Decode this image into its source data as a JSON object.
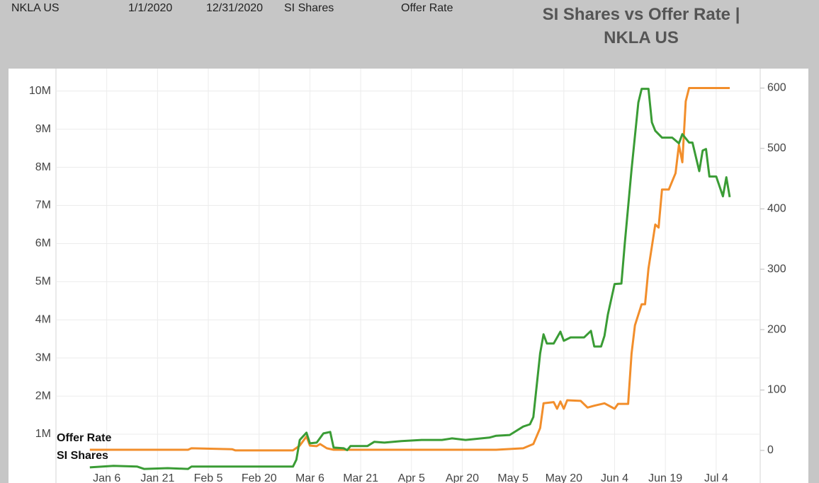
{
  "header": {
    "ticker": "NKLA US",
    "start_date": "1/1/2020",
    "end_date": "12/31/2020",
    "measure_1": "SI Shares",
    "measure_2": "Offer Rate"
  },
  "chart_data": {
    "type": "line",
    "title": "SI Shares vs Offer Rate | NKLA US",
    "xlim": [
      -9,
      199
    ],
    "xticks": [
      {
        "value": 6,
        "label": "Jan 6"
      },
      {
        "value": 21,
        "label": "Jan 21"
      },
      {
        "value": 36,
        "label": "Feb 5"
      },
      {
        "value": 51,
        "label": "Feb 20"
      },
      {
        "value": 66,
        "label": "Mar 6"
      },
      {
        "value": 81,
        "label": "Mar 21"
      },
      {
        "value": 96,
        "label": "Apr 5"
      },
      {
        "value": 111,
        "label": "Apr 20"
      },
      {
        "value": 126,
        "label": "May 5"
      },
      {
        "value": 141,
        "label": "May 20"
      },
      {
        "value": 156,
        "label": "Jun 4"
      },
      {
        "value": 171,
        "label": "Jun 19"
      },
      {
        "value": 186,
        "label": "Jul 4"
      }
    ],
    "ylim": [
      -280000,
      10460000
    ],
    "yticks": [
      {
        "value": 1000000,
        "label": "1M"
      },
      {
        "value": 2000000,
        "label": "2M"
      },
      {
        "value": 3000000,
        "label": "3M"
      },
      {
        "value": 4000000,
        "label": "4M"
      },
      {
        "value": 5000000,
        "label": "5M"
      },
      {
        "value": 6000000,
        "label": "6M"
      },
      {
        "value": 7000000,
        "label": "7M"
      },
      {
        "value": 8000000,
        "label": "8M"
      },
      {
        "value": 9000000,
        "label": "9M"
      },
      {
        "value": 10000000,
        "label": "10M"
      }
    ],
    "y2lim": [
      -54,
      624
    ],
    "y2ticks": [
      0,
      100,
      200,
      300,
      400,
      500,
      600
    ],
    "grid": true,
    "series": [
      {
        "name": "Offer Rate",
        "color": "#f28e2b",
        "axis": "y2",
        "x": [
          1,
          30,
          31,
          43,
          44,
          61,
          63,
          65,
          66,
          68,
          69,
          71,
          73,
          121,
          129,
          132,
          134,
          135,
          138,
          139,
          140,
          141,
          142,
          146,
          148,
          150,
          153,
          156,
          157,
          160,
          161,
          162,
          164,
          165,
          166,
          168,
          169,
          170,
          172,
          174,
          175,
          176,
          177,
          178,
          190
        ],
        "values": [
          1,
          1,
          3.5,
          2,
          0,
          0,
          8,
          23,
          8,
          7,
          10.5,
          3.5,
          1,
          1,
          3.5,
          10.5,
          37,
          78,
          80,
          69,
          81,
          69,
          83,
          82,
          71,
          74,
          78,
          69,
          77,
          77,
          160,
          207,
          242,
          242,
          301,
          374,
          369,
          432,
          432,
          459,
          506,
          477,
          578,
          600,
          600
        ]
      },
      {
        "name": "SI Shares",
        "color": "#3a9c35",
        "x": [
          1,
          8,
          15,
          17,
          24,
          30,
          31,
          61,
          62,
          63,
          65,
          66,
          68,
          70,
          72,
          73,
          76,
          77,
          78,
          83,
          85,
          88,
          93,
          99,
          105,
          108,
          112,
          119,
          121,
          125,
          129,
          131,
          132,
          134,
          135,
          136,
          138,
          140,
          141,
          143,
          147,
          149,
          150,
          152,
          153,
          154,
          156,
          158,
          159,
          161,
          163,
          164,
          166,
          167,
          168,
          170,
          173,
          175,
          176,
          178,
          179,
          181,
          182,
          183,
          184,
          186,
          188,
          189,
          190
        ],
        "values": [
          130000,
          170000,
          150000,
          90000,
          110000,
          90000,
          150000,
          150000,
          330000,
          850000,
          1040000,
          760000,
          780000,
          1020000,
          1060000,
          650000,
          630000,
          580000,
          690000,
          690000,
          800000,
          780000,
          820000,
          850000,
          850000,
          890000,
          850000,
          910000,
          960000,
          980000,
          1200000,
          1260000,
          1450000,
          3120000,
          3620000,
          3380000,
          3380000,
          3690000,
          3450000,
          3540000,
          3540000,
          3710000,
          3300000,
          3300000,
          3580000,
          4140000,
          4940000,
          4950000,
          5990000,
          7940000,
          9700000,
          10060000,
          10060000,
          9180000,
          8960000,
          8780000,
          8780000,
          8630000,
          8870000,
          8650000,
          8650000,
          7900000,
          8440000,
          8480000,
          7760000,
          7760000,
          7240000,
          7740000,
          7220000
        ]
      }
    ]
  }
}
